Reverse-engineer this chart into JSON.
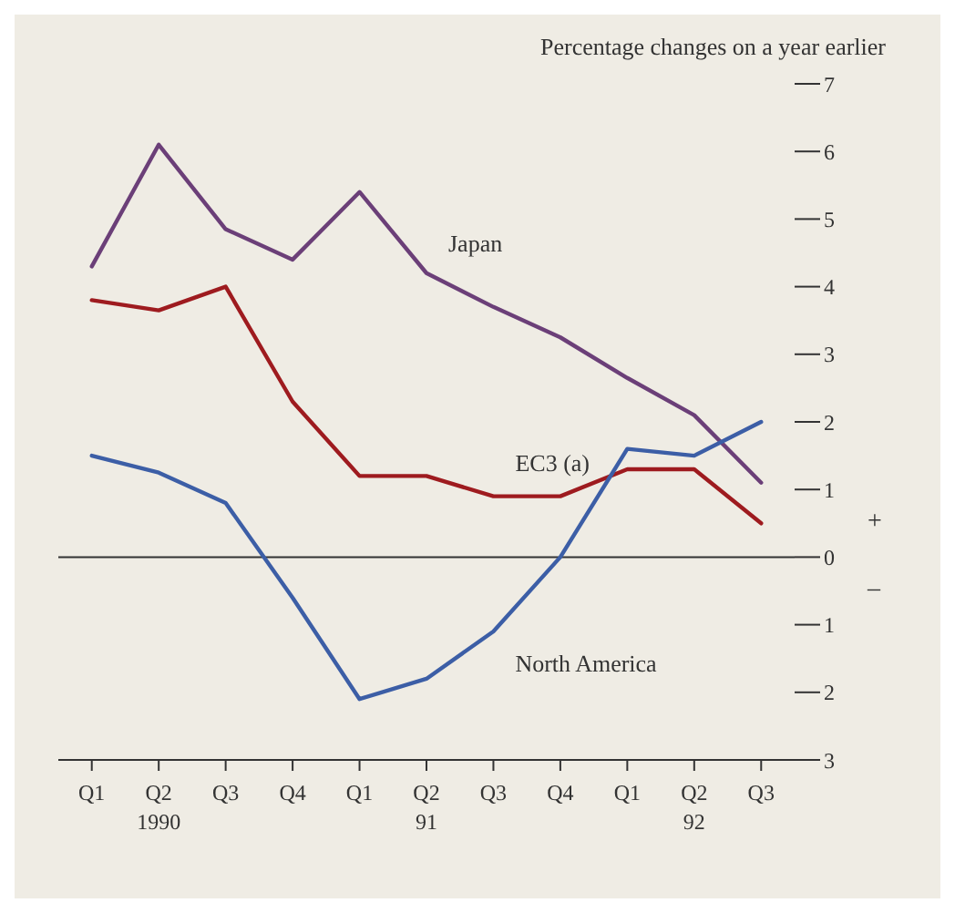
{
  "chart_data": {
    "type": "line",
    "ylabel": "Percentage changes on a year earlier",
    "categories": [
      "Q1",
      "Q2\n1990",
      "Q3",
      "Q4",
      "Q1",
      "Q2\n91",
      "Q3",
      "Q4",
      "Q1",
      "Q2\n92",
      "Q3"
    ],
    "series": [
      {
        "name": "Japan",
        "color": "#6b3f78",
        "values": [
          4.3,
          6.1,
          4.85,
          4.4,
          5.4,
          4.2,
          3.7,
          3.25,
          2.65,
          2.1,
          1.1
        ]
      },
      {
        "name": "EC3 (a)",
        "color": "#9e1b1f",
        "values": [
          3.8,
          3.65,
          4.0,
          2.3,
          1.2,
          1.2,
          0.9,
          0.9,
          1.3,
          1.3,
          0.5
        ]
      },
      {
        "name": "North America",
        "color": "#3c5ea6",
        "values": [
          1.5,
          1.25,
          0.8,
          -0.6,
          -2.1,
          -1.8,
          -1.1,
          0.0,
          1.6,
          1.5,
          2.0
        ]
      }
    ],
    "ylim": [
      -3,
      7
    ],
    "yticks": [
      {
        "value": -3,
        "label": "3"
      },
      {
        "value": -2,
        "label": "2"
      },
      {
        "value": -1,
        "label": "1"
      },
      0,
      1,
      2,
      3,
      4,
      5,
      6,
      7
    ],
    "ref_lines": [
      {
        "axis": "y",
        "value": 0,
        "color": "#333333"
      }
    ],
    "annotations": [
      "+",
      "–"
    ],
    "grid": false,
    "legend": false,
    "marker": "none",
    "line_style": "solid"
  }
}
